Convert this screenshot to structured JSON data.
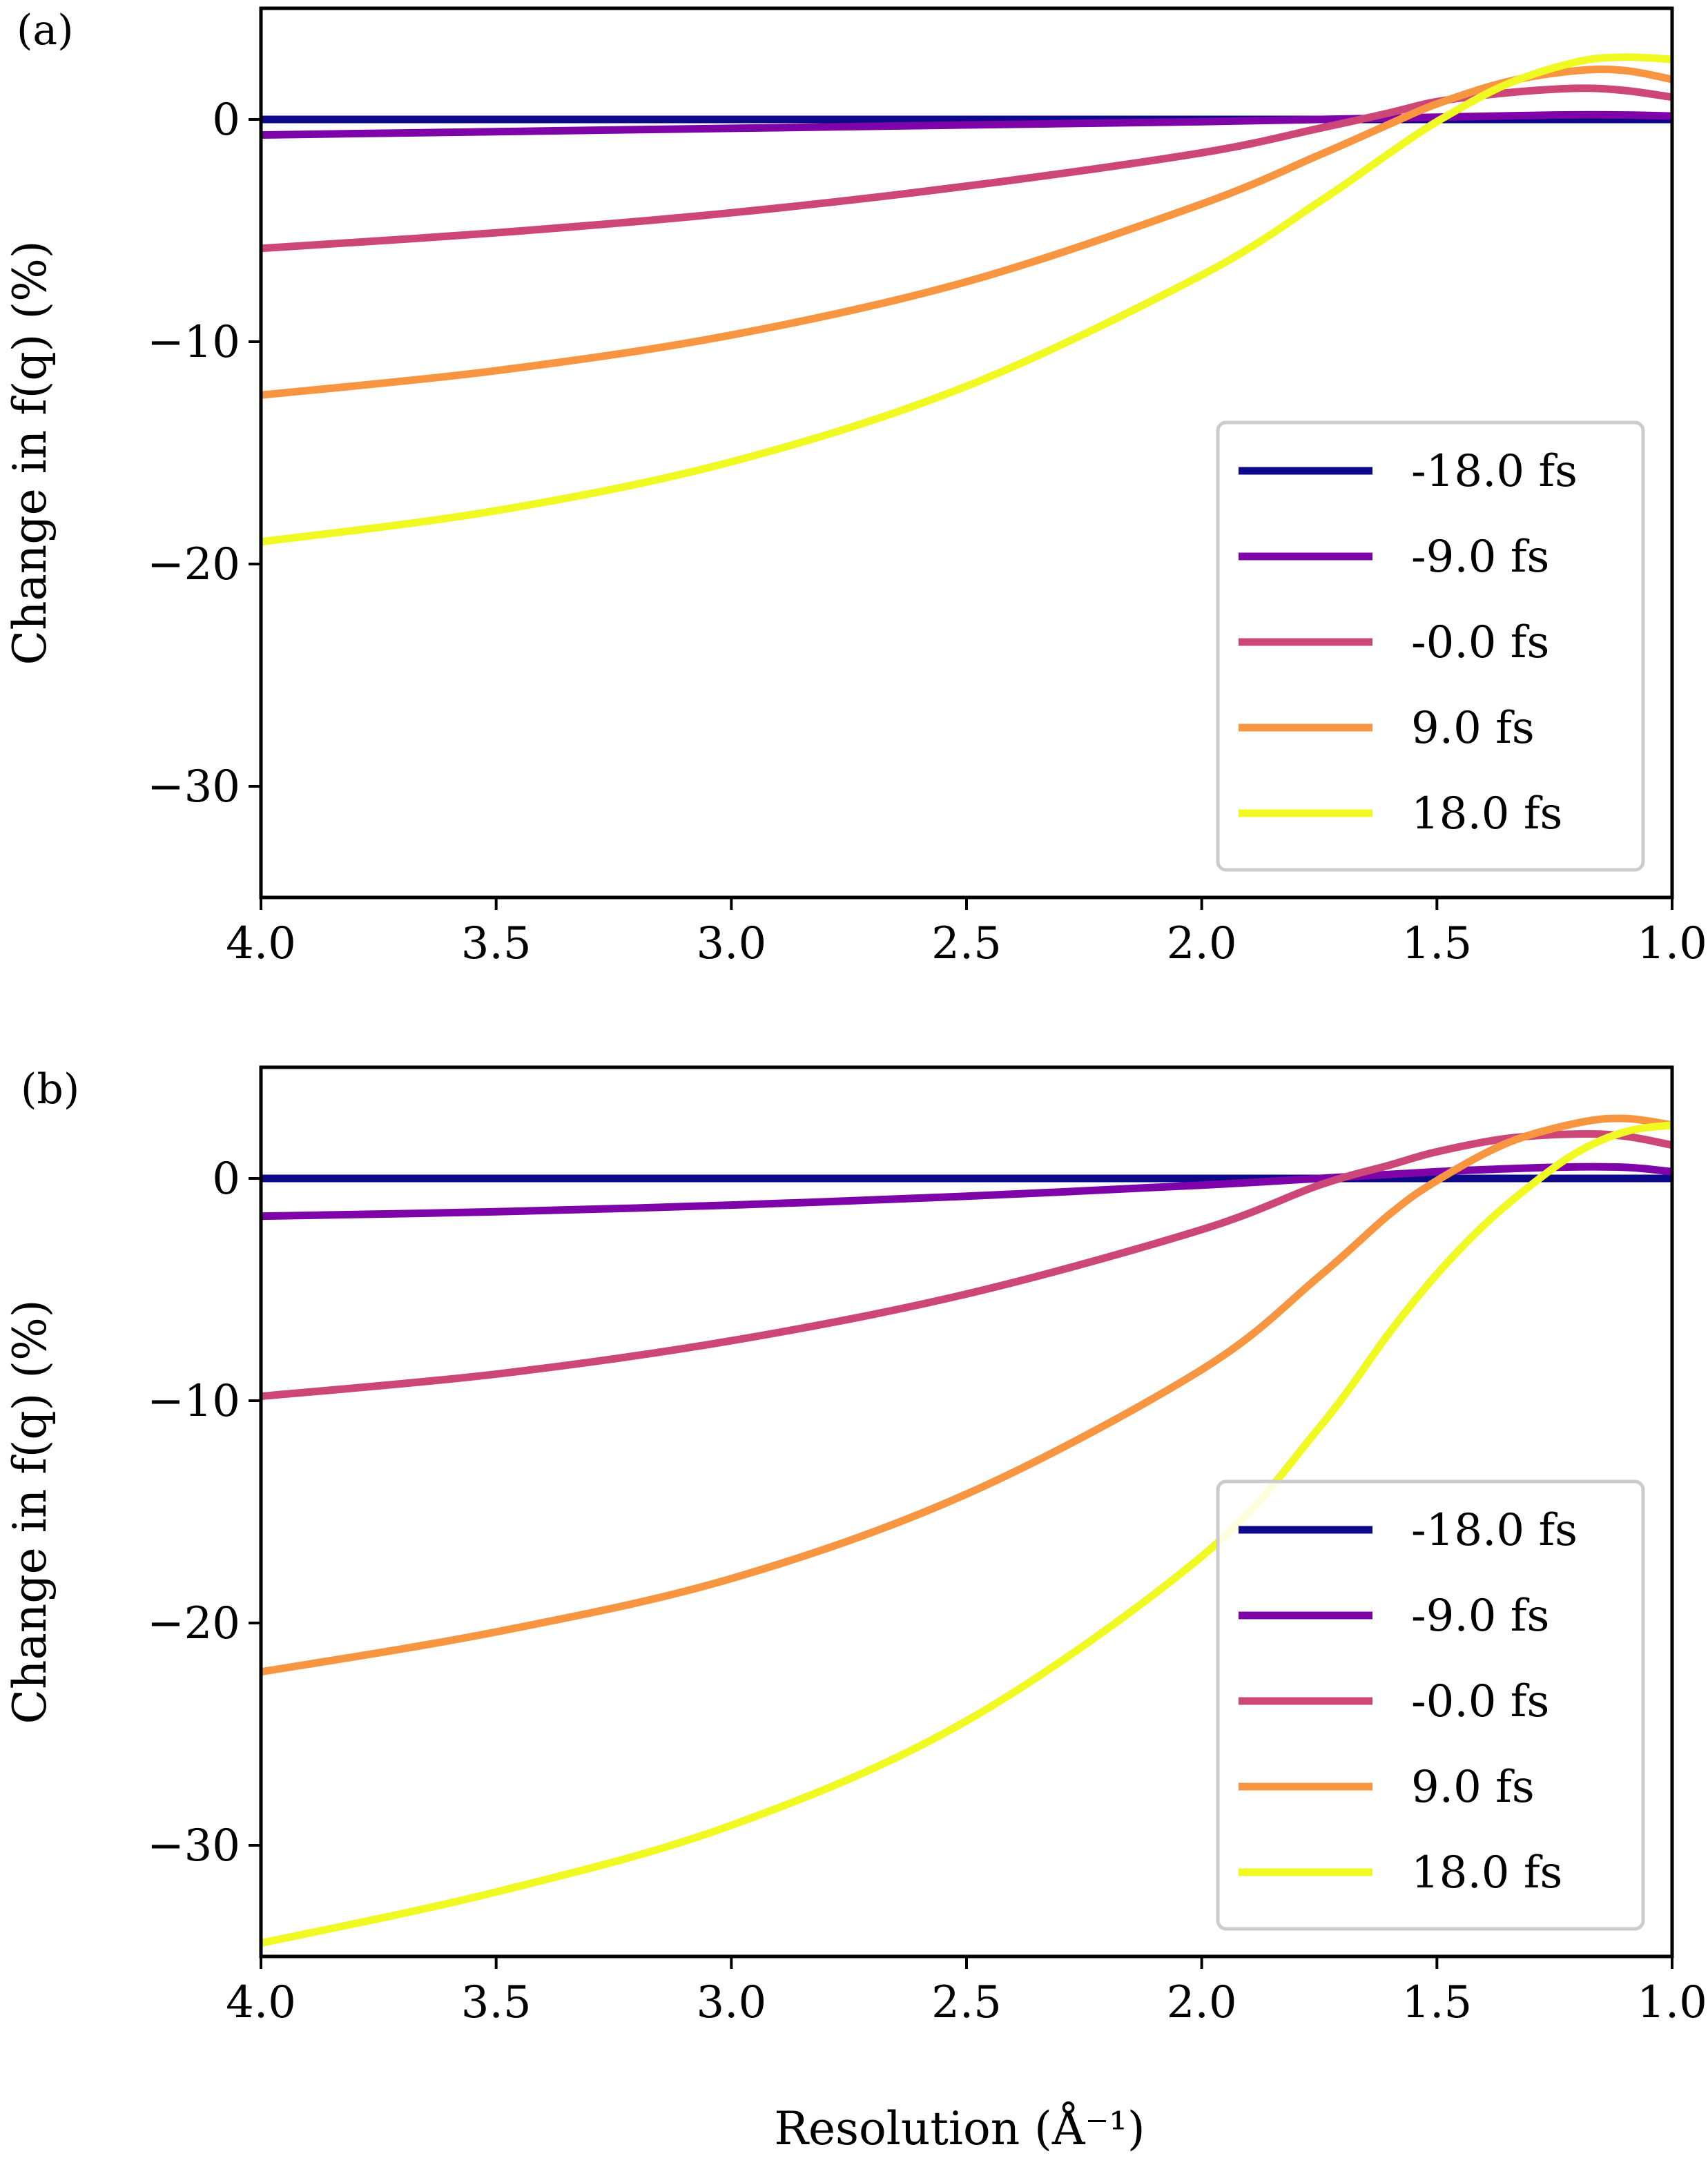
{
  "figure": {
    "xlabel": "Resolution (Å⁻¹)",
    "ylabel": "Change in f(q) (%)"
  },
  "chart_data": [
    {
      "type": "line",
      "panel_label": "(a)",
      "xlabel": "",
      "ylabel": "Change in f(q) (%)",
      "xlim": [
        4.0,
        1.0
      ],
      "ylim": [
        -35,
        5
      ],
      "x_ticks": [
        4.0,
        3.5,
        3.0,
        2.5,
        2.0,
        1.5,
        1.0
      ],
      "x_tick_labels": [
        "4.0",
        "3.5",
        "3.0",
        "2.5",
        "2.0",
        "1.5",
        "1.0"
      ],
      "y_ticks": [
        0,
        -10,
        -20,
        -30
      ],
      "y_tick_labels": [
        "0",
        "−10",
        "−20",
        "−30"
      ],
      "legend_position": "lower-right",
      "series": [
        {
          "name": "-18.0 fs",
          "color": "#0d0887",
          "x": [
            4.0,
            3.5,
            3.0,
            2.5,
            2.0,
            1.75,
            1.5,
            1.25,
            1.1,
            1.0
          ],
          "values": [
            0,
            0,
            0,
            0,
            0,
            0,
            0,
            0,
            0,
            0
          ]
        },
        {
          "name": "-9.0 fs",
          "color": "#7e03a8",
          "x": [
            4.0,
            3.5,
            3.0,
            2.5,
            2.0,
            1.75,
            1.5,
            1.25,
            1.1,
            1.0
          ],
          "values": [
            -0.7,
            -0.55,
            -0.4,
            -0.25,
            -0.1,
            0.0,
            0.1,
            0.2,
            0.2,
            0.15
          ]
        },
        {
          "name": "-0.0 fs",
          "color": "#cc4778",
          "x": [
            4.0,
            3.5,
            3.0,
            2.5,
            2.0,
            1.75,
            1.6,
            1.5,
            1.35,
            1.2,
            1.1,
            1.0
          ],
          "values": [
            -5.8,
            -5.1,
            -4.2,
            -3.0,
            -1.5,
            -0.4,
            0.3,
            0.8,
            1.2,
            1.4,
            1.3,
            1.0
          ]
        },
        {
          "name": "9.0 fs",
          "color": "#f89540",
          "x": [
            4.0,
            3.5,
            3.0,
            2.5,
            2.0,
            1.75,
            1.6,
            1.5,
            1.35,
            1.2,
            1.1,
            1.0
          ],
          "values": [
            -12.4,
            -11.3,
            -9.7,
            -7.3,
            -3.8,
            -1.6,
            -0.2,
            0.7,
            1.7,
            2.2,
            2.2,
            1.8
          ]
        },
        {
          "name": "18.0 fs",
          "color": "#f0f921",
          "x": [
            4.0,
            3.5,
            3.0,
            2.5,
            2.0,
            1.75,
            1.6,
            1.5,
            1.35,
            1.2,
            1.1,
            1.0
          ],
          "values": [
            -19.0,
            -17.6,
            -15.4,
            -12.0,
            -7.0,
            -3.7,
            -1.5,
            -0.1,
            1.6,
            2.6,
            2.8,
            2.7
          ]
        }
      ]
    },
    {
      "type": "line",
      "panel_label": "(b)",
      "xlabel": "Resolution (Å⁻¹)",
      "ylabel": "Change in f(q) (%)",
      "xlim": [
        4.0,
        1.0
      ],
      "ylim": [
        -35,
        5
      ],
      "x_ticks": [
        4.0,
        3.5,
        3.0,
        2.5,
        2.0,
        1.5,
        1.0
      ],
      "x_tick_labels": [
        "4.0",
        "3.5",
        "3.0",
        "2.5",
        "2.0",
        "1.5",
        "1.0"
      ],
      "y_ticks": [
        0,
        -10,
        -20,
        -30
      ],
      "y_tick_labels": [
        "0",
        "−10",
        "−20",
        "−30"
      ],
      "legend_position": "lower-right",
      "series": [
        {
          "name": "-18.0 fs",
          "color": "#0d0887",
          "x": [
            4.0,
            3.5,
            3.0,
            2.5,
            2.0,
            1.75,
            1.5,
            1.25,
            1.1,
            1.0
          ],
          "values": [
            0,
            0,
            0,
            0,
            0,
            0,
            0,
            0,
            0,
            0
          ]
        },
        {
          "name": "-9.0 fs",
          "color": "#7e03a8",
          "x": [
            4.0,
            3.5,
            3.0,
            2.5,
            2.0,
            1.75,
            1.5,
            1.25,
            1.1,
            1.0
          ],
          "values": [
            -1.7,
            -1.5,
            -1.2,
            -0.8,
            -0.3,
            0.0,
            0.3,
            0.5,
            0.5,
            0.3
          ]
        },
        {
          "name": "-0.0 fs",
          "color": "#cc4778",
          "x": [
            4.0,
            3.5,
            3.0,
            2.5,
            2.0,
            1.75,
            1.6,
            1.5,
            1.35,
            1.2,
            1.1,
            1.0
          ],
          "values": [
            -9.8,
            -8.8,
            -7.3,
            -5.2,
            -2.3,
            -0.3,
            0.6,
            1.2,
            1.8,
            2.0,
            1.9,
            1.5
          ]
        },
        {
          "name": "9.0 fs",
          "color": "#f89540",
          "x": [
            4.0,
            3.5,
            3.0,
            2.5,
            2.0,
            1.75,
            1.6,
            1.5,
            1.35,
            1.2,
            1.1,
            1.0
          ],
          "values": [
            -22.2,
            -20.4,
            -18.0,
            -14.2,
            -8.6,
            -4.4,
            -1.6,
            -0.1,
            1.6,
            2.5,
            2.7,
            2.4
          ]
        },
        {
          "name": "18.0 fs",
          "color": "#f0f921",
          "x": [
            4.0,
            3.5,
            3.0,
            2.5,
            2.0,
            1.75,
            1.6,
            1.5,
            1.4,
            1.3,
            1.2,
            1.1,
            1.0
          ],
          "values": [
            -34.4,
            -32.1,
            -29.1,
            -24.4,
            -17.0,
            -11.2,
            -6.9,
            -4.3,
            -2.1,
            -0.3,
            1.2,
            2.1,
            2.4
          ]
        }
      ]
    }
  ]
}
